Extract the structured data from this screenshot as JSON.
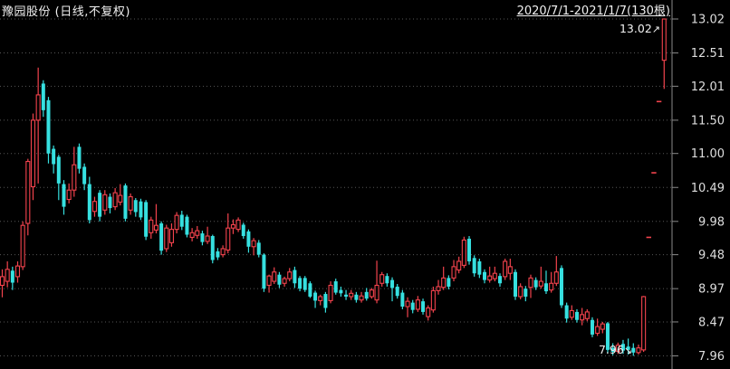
{
  "header": {
    "title": "豫园股份 (日线,不复权)",
    "date_range": "2020/7/1-2021/1/7(130根)"
  },
  "annotations": {
    "high": {
      "text": "13.02",
      "arrow": "↗"
    },
    "low": {
      "text": "7.96",
      "arrow": "↘"
    }
  },
  "colors": {
    "background": "#000000",
    "up": "#f3434d",
    "down": "#36e0e0",
    "grid": "#565656",
    "axis": "#8a8a8a",
    "tick_text": "#dedede"
  },
  "axis": {
    "tick_labels": [
      "13.02",
      "12.51",
      "12.01",
      "11.50",
      "11.00",
      "10.49",
      "9.98",
      "9.48",
      "8.97",
      "8.47",
      "7.96"
    ]
  },
  "chart_data": {
    "type": "candlestick",
    "title": "豫园股份 (日线,不复权)",
    "x_range_label": "2020/7/1-2021/1/7(130根)",
    "bar_count": 130,
    "y_min": 7.96,
    "y_max": 13.02,
    "y_ticks": [
      13.02,
      12.51,
      12.01,
      11.5,
      11.0,
      10.49,
      9.98,
      9.48,
      8.97,
      8.47,
      7.96
    ],
    "grid": "dotted-horizontal",
    "legend": "none",
    "high_point": 13.02,
    "low_point": 7.96,
    "bars_ohlc": [
      [
        9.02,
        9.26,
        8.84,
        9.15
      ],
      [
        9.08,
        9.38,
        8.99,
        9.26
      ],
      [
        9.24,
        9.3,
        8.95,
        9.06
      ],
      [
        9.15,
        9.38,
        9.06,
        9.31
      ],
      [
        9.3,
        9.98,
        9.25,
        9.92
      ],
      [
        9.95,
        10.92,
        9.77,
        10.88
      ],
      [
        10.5,
        11.6,
        10.3,
        11.5
      ],
      [
        11.5,
        12.29,
        10.55,
        11.88
      ],
      [
        12.05,
        12.1,
        11.55,
        11.65
      ],
      [
        11.8,
        11.85,
        10.85,
        11.0
      ],
      [
        11.07,
        11.12,
        10.7,
        10.84
      ],
      [
        10.95,
        10.98,
        10.3,
        10.55
      ],
      [
        10.54,
        10.6,
        10.08,
        10.2
      ],
      [
        10.31,
        10.55,
        10.25,
        10.45
      ],
      [
        10.45,
        11.1,
        10.35,
        10.83
      ],
      [
        11.1,
        11.15,
        10.7,
        10.77
      ],
      [
        10.8,
        10.85,
        10.45,
        10.54
      ],
      [
        10.54,
        10.65,
        9.95,
        10.0
      ],
      [
        10.13,
        10.35,
        10.05,
        10.28
      ],
      [
        10.41,
        10.45,
        9.98,
        10.05
      ],
      [
        10.15,
        10.45,
        10.08,
        10.38
      ],
      [
        10.35,
        10.4,
        10.1,
        10.18
      ],
      [
        10.2,
        10.48,
        10.15,
        10.41
      ],
      [
        10.27,
        10.54,
        10.22,
        10.37
      ],
      [
        10.52,
        10.55,
        9.98,
        10.02
      ],
      [
        10.15,
        10.4,
        10.08,
        10.35
      ],
      [
        10.3,
        10.33,
        10.05,
        10.12
      ],
      [
        10.28,
        10.32,
        10.0,
        10.04
      ],
      [
        10.27,
        10.3,
        9.7,
        9.75
      ],
      [
        9.81,
        10.05,
        9.72,
        10.0
      ],
      [
        9.85,
        10.24,
        9.8,
        9.92
      ],
      [
        9.95,
        9.98,
        9.48,
        9.54
      ],
      [
        9.57,
        9.93,
        9.52,
        9.88
      ],
      [
        9.66,
        9.95,
        9.6,
        9.86
      ],
      [
        9.86,
        10.12,
        9.8,
        10.07
      ],
      [
        10.08,
        10.14,
        9.85,
        9.9
      ],
      [
        10.05,
        10.08,
        9.74,
        9.78
      ],
      [
        9.74,
        9.88,
        9.68,
        9.81
      ],
      [
        9.77,
        9.91,
        9.72,
        9.84
      ],
      [
        9.8,
        9.84,
        9.62,
        9.67
      ],
      [
        9.68,
        9.9,
        9.64,
        9.76
      ],
      [
        9.76,
        9.78,
        9.35,
        9.4
      ],
      [
        9.53,
        9.58,
        9.4,
        9.44
      ],
      [
        9.48,
        9.62,
        9.44,
        9.57
      ],
      [
        9.55,
        10.1,
        9.5,
        9.88
      ],
      [
        9.88,
        10.01,
        9.79,
        9.93
      ],
      [
        9.86,
        10.04,
        9.82,
        10.0
      ],
      [
        9.93,
        9.96,
        9.72,
        9.76
      ],
      [
        9.83,
        9.86,
        9.51,
        9.6
      ],
      [
        9.6,
        9.73,
        9.47,
        9.69
      ],
      [
        9.66,
        9.7,
        9.44,
        9.48
      ],
      [
        9.48,
        9.5,
        8.92,
        8.97
      ],
      [
        9.02,
        9.18,
        8.91,
        9.16
      ],
      [
        9.08,
        9.29,
        9.04,
        9.22
      ],
      [
        9.18,
        9.22,
        8.98,
        9.03
      ],
      [
        9.05,
        9.15,
        9.0,
        9.12
      ],
      [
        9.12,
        9.28,
        9.08,
        9.22
      ],
      [
        9.25,
        9.3,
        8.98,
        9.05
      ],
      [
        9.13,
        9.16,
        8.93,
        8.97
      ],
      [
        9.13,
        9.16,
        8.92,
        8.95
      ],
      [
        9.05,
        9.08,
        8.83,
        8.85
      ],
      [
        8.91,
        8.94,
        8.68,
        8.79
      ],
      [
        8.79,
        8.88,
        8.72,
        8.85
      ],
      [
        8.89,
        8.92,
        8.61,
        8.68
      ],
      [
        8.79,
        9.08,
        8.75,
        9.02
      ],
      [
        9.08,
        9.12,
        8.88,
        8.91
      ],
      [
        8.95,
        9.0,
        8.85,
        8.9
      ],
      [
        8.88,
        8.95,
        8.8,
        8.85
      ],
      [
        8.85,
        8.95,
        8.8,
        8.9
      ],
      [
        8.88,
        8.92,
        8.76,
        8.8
      ],
      [
        8.8,
        8.92,
        8.76,
        8.86
      ],
      [
        8.92,
        8.98,
        8.79,
        8.82
      ],
      [
        8.85,
        8.98,
        8.82,
        8.95
      ],
      [
        8.8,
        9.39,
        8.75,
        9.02
      ],
      [
        9.05,
        9.22,
        9.0,
        9.18
      ],
      [
        9.16,
        9.2,
        9.0,
        9.05
      ],
      [
        9.1,
        9.14,
        8.78,
        8.98
      ],
      [
        9.0,
        9.04,
        8.82,
        8.86
      ],
      [
        8.91,
        8.95,
        8.66,
        8.7
      ],
      [
        8.7,
        8.84,
        8.54,
        8.78
      ],
      [
        8.76,
        8.8,
        8.6,
        8.65
      ],
      [
        8.66,
        8.86,
        8.62,
        8.8
      ],
      [
        8.78,
        8.82,
        8.58,
        8.62
      ],
      [
        8.55,
        8.72,
        8.49,
        8.68
      ],
      [
        8.65,
        9.0,
        8.61,
        8.94
      ],
      [
        8.94,
        9.1,
        8.88,
        9.0
      ],
      [
        8.99,
        9.3,
        8.95,
        9.13
      ],
      [
        9.13,
        9.17,
        8.96,
        9.0
      ],
      [
        9.13,
        9.4,
        9.08,
        9.3
      ],
      [
        9.25,
        9.45,
        9.2,
        9.38
      ],
      [
        9.32,
        9.75,
        9.28,
        9.7
      ],
      [
        9.72,
        9.76,
        9.33,
        9.38
      ],
      [
        9.43,
        9.47,
        9.15,
        9.2
      ],
      [
        9.38,
        9.42,
        9.13,
        9.18
      ],
      [
        9.22,
        9.26,
        9.05,
        9.1
      ],
      [
        9.1,
        9.3,
        9.06,
        9.16
      ],
      [
        9.12,
        9.3,
        9.08,
        9.2
      ],
      [
        9.16,
        9.2,
        9.0,
        9.05
      ],
      [
        9.15,
        9.42,
        9.1,
        9.38
      ],
      [
        9.2,
        9.42,
        9.1,
        9.3
      ],
      [
        9.22,
        9.26,
        8.8,
        8.85
      ],
      [
        8.85,
        9.05,
        8.81,
        9.0
      ],
      [
        8.97,
        9.01,
        8.78,
        8.85
      ],
      [
        8.99,
        9.18,
        8.83,
        9.13
      ],
      [
        9.1,
        9.14,
        8.95,
        8.99
      ],
      [
        9.01,
        9.3,
        8.97,
        9.08
      ],
      [
        9.05,
        9.24,
        8.89,
        8.93
      ],
      [
        8.95,
        9.22,
        8.91,
        9.05
      ],
      [
        9.05,
        9.46,
        9.01,
        9.22
      ],
      [
        9.28,
        9.32,
        8.68,
        8.72
      ],
      [
        8.72,
        8.76,
        8.46,
        8.52
      ],
      [
        8.54,
        8.72,
        8.5,
        8.64
      ],
      [
        8.62,
        8.66,
        8.46,
        8.5
      ],
      [
        8.5,
        8.68,
        8.42,
        8.58
      ],
      [
        8.52,
        8.66,
        8.48,
        8.62
      ],
      [
        8.5,
        8.54,
        8.24,
        8.28
      ],
      [
        8.3,
        8.52,
        8.26,
        8.4
      ],
      [
        8.36,
        8.47,
        8.3,
        8.44
      ],
      [
        8.45,
        8.47,
        8.0,
        8.05
      ],
      [
        8.08,
        8.15,
        7.97,
        8.02
      ],
      [
        8.03,
        8.16,
        7.99,
        8.12
      ],
      [
        8.14,
        8.2,
        7.99,
        8.04
      ],
      [
        8.1,
        8.22,
        7.98,
        8.05
      ],
      [
        8.08,
        8.15,
        7.96,
        8.01
      ],
      [
        8.01,
        8.13,
        7.98,
        8.08
      ],
      [
        8.05,
        8.86,
        8.02,
        8.85
      ],
      [
        9.74,
        9.74,
        9.74,
        9.74
      ],
      [
        10.71,
        10.71,
        10.71,
        10.71
      ],
      [
        11.78,
        11.78,
        11.78,
        11.78
      ],
      [
        12.4,
        13.02,
        11.97,
        13.02
      ]
    ]
  }
}
